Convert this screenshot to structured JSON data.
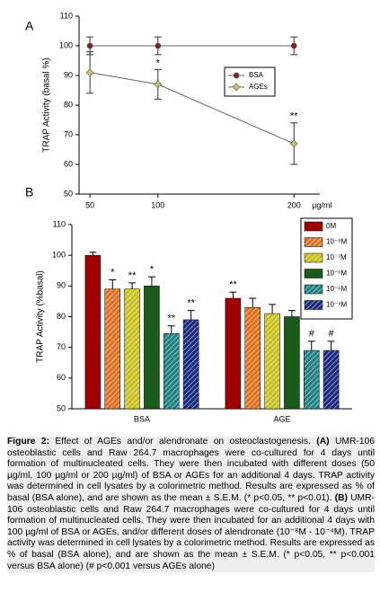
{
  "chart_data": [
    {
      "type": "line",
      "panel": "A",
      "ylabel": "TRAP Activity (basal %)",
      "xlabel": "µg/ml",
      "x": [
        50,
        100,
        200
      ],
      "xlim": [
        42,
        219
      ],
      "xticks": [
        50,
        100,
        200
      ],
      "ylim": [
        50,
        110
      ],
      "yticks": [
        50,
        60,
        70,
        80,
        90,
        100,
        110
      ],
      "series": [
        {
          "name": "BSA",
          "color": "#8b1a1a",
          "marker": "circle",
          "values": [
            100,
            100,
            100
          ],
          "errors": [
            3,
            3,
            3
          ],
          "annotations": [
            null,
            null,
            null
          ]
        },
        {
          "name": "AGEs",
          "color": "#c8c060",
          "marker": "diamond",
          "values": [
            91,
            87,
            67
          ],
          "errors": [
            7,
            5,
            7
          ],
          "annotations": [
            null,
            "*",
            "**"
          ]
        }
      ]
    },
    {
      "type": "bar",
      "panel": "B",
      "ylabel": "TRAP Activity (%basal)",
      "categories": [
        "BSA",
        "AGE"
      ],
      "ylim": [
        50,
        110
      ],
      "yticks": [
        50,
        60,
        70,
        80,
        90,
        100,
        110
      ],
      "series": [
        {
          "name": "0M",
          "color": "#a00000",
          "hatch": false,
          "values": [
            100,
            86
          ],
          "errors": [
            1,
            2
          ],
          "annotations": [
            null,
            "**"
          ]
        },
        {
          "name": "10⁻⁸M",
          "color": "#e07020",
          "hatch": true,
          "values": [
            89,
            83
          ],
          "errors": [
            3,
            3
          ],
          "annotations": [
            "*",
            null
          ]
        },
        {
          "name": "10⁻⁷M",
          "color": "#c8c020",
          "hatch": true,
          "values": [
            89,
            81
          ],
          "errors": [
            2,
            3
          ],
          "annotations": [
            "**",
            null
          ]
        },
        {
          "name": "10⁻⁶M",
          "color": "#1a5a1a",
          "hatch": false,
          "values": [
            90,
            80
          ],
          "errors": [
            3,
            2
          ],
          "annotations": [
            "*",
            null
          ]
        },
        {
          "name": "10⁻⁵M",
          "color": "#208080",
          "hatch": true,
          "values": [
            74.5,
            69
          ],
          "errors": [
            2.5,
            3
          ],
          "annotations": [
            "**",
            "#"
          ]
        },
        {
          "name": "10⁻⁴M",
          "color": "#1a2a80",
          "hatch": true,
          "values": [
            79,
            69
          ],
          "errors": [
            3,
            3
          ],
          "annotations": [
            "**",
            "#"
          ]
        }
      ]
    }
  ],
  "caption": [
    "Figure 2:",
    " Effect of AGEs and/or alendronate on osteoclastogenesis. ",
    "(A)",
    " UMR-106 osteoblastic cells and Raw 264.7 macrophages were co-cultured for 4 days until formation of multinucleated cells. They were then incubated with different doses (50 µg/ml, 100 µg/ml or 200 µg/ml) of BSA or AGEs for an additional 4 days. TRAP activity was determined in cell lysates by a colorimetric method. Results are expressed as % of basal (BSA alone), and are shown as the mean ± S.E.M. (* p<0.05, ** p<0.01). ",
    "(B)",
    " UMR-106 osteoblastic cells and Raw 264.7 macrophages were co-cultured for 4 days until formation of multinucleated cells. They were then incubated for an additional 4 days with 100 µg/ml of BSA or AGEs, and/or different doses of alendronate (10⁻⁸M - 10⁻⁴M). TRAP activity was determined in cell lysates by a colorimetric method. Results are expressed as % of basal (BSA alone), and are shown as the mean ± S.E.M. (* p<0.05, ** p<0.001 versus BSA alone) (# p<0.001 versus AGEs alone)"
  ]
}
